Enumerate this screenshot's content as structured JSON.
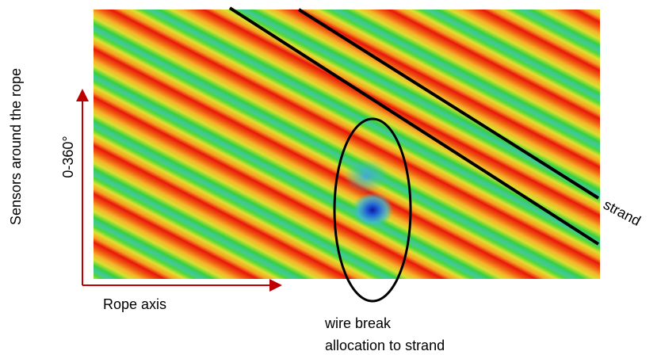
{
  "labels": {
    "sensors": "Sensors around the rope",
    "range": "0-360°",
    "rope_axis": "Rope axis",
    "strand": "strand",
    "wire_break": "wire break",
    "allocation": "allocation to strand"
  }
}
